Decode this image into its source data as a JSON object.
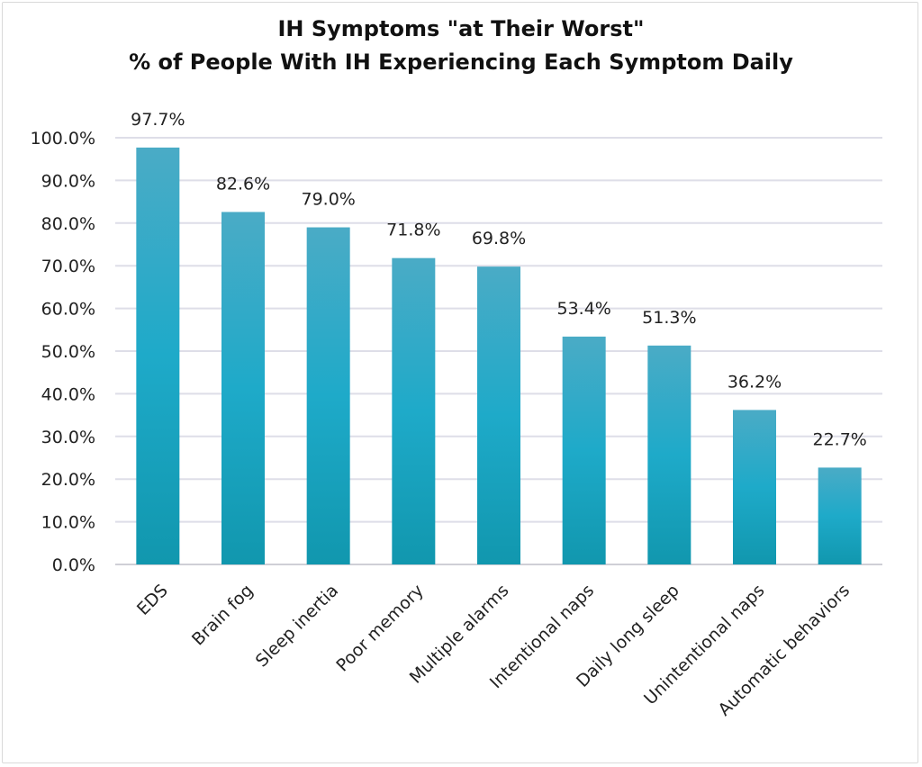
{
  "chart_data": {
    "type": "bar",
    "title_lines": [
      "IH Symptoms \"at Their Worst\"",
      "% of People With IH Experiencing Each Symptom Daily"
    ],
    "categories": [
      "EDS",
      "Brain fog",
      "Sleep inertia",
      "Poor memory",
      "Multiple alarms",
      "Intentional naps",
      "Daily long sleep",
      "Unintentional naps",
      "Automatic behaviors"
    ],
    "values": [
      97.7,
      82.6,
      79.0,
      71.8,
      69.8,
      53.4,
      51.3,
      36.2,
      22.7
    ],
    "data_labels": [
      "97.7%",
      "82.6%",
      "79.0%",
      "71.8%",
      "69.8%",
      "53.4%",
      "51.3%",
      "36.2%",
      "22.7%"
    ],
    "y_ticks": [
      0,
      10,
      20,
      30,
      40,
      50,
      60,
      70,
      80,
      90,
      100
    ],
    "y_tick_labels": [
      "0.0%",
      "10.0%",
      "20.0%",
      "30.0%",
      "40.0%",
      "50.0%",
      "60.0%",
      "70.0%",
      "80.0%",
      "90.0%",
      "100.0%"
    ],
    "ylim": [
      0,
      100
    ],
    "grid": true,
    "bar_color_top": "#4aabc6",
    "bar_color_mid": "#1eaac9",
    "bar_color_bottom": "#1197ae",
    "grid_color": "#dedee8"
  }
}
